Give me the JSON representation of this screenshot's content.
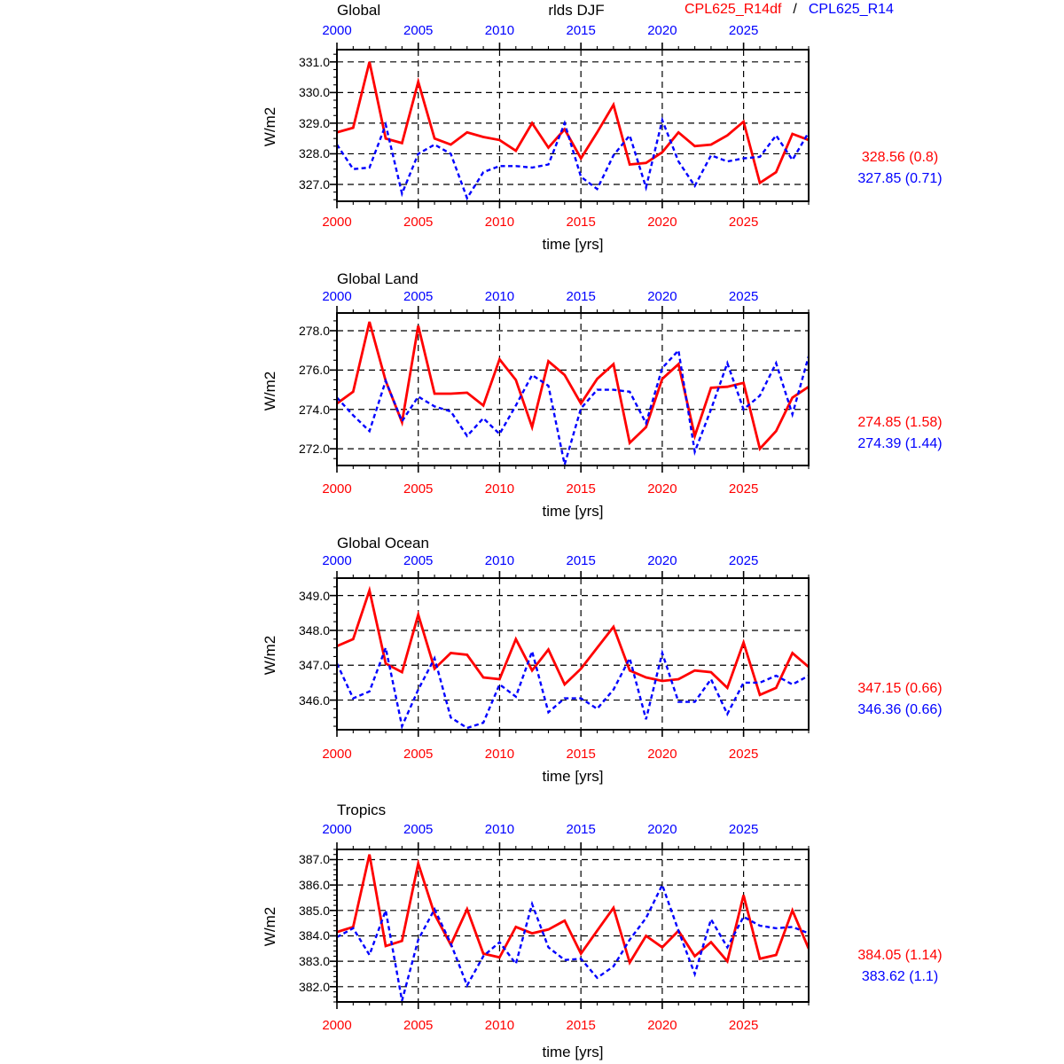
{
  "header": {
    "center_label": "rlds DJF",
    "legend": {
      "series1_label": "CPL625_R14df",
      "separator": "/",
      "series2_label": "CPL625_R14"
    }
  },
  "axis": {
    "xlabel": "time [yrs]",
    "ylabel": "W/m2",
    "x_tick_labels": [
      "2000",
      "2005",
      "2010",
      "2015",
      "2020",
      "2025"
    ],
    "top_tick_label_color": "#0000ff",
    "bottom_tick_label_color": "#ff0000"
  },
  "colors": {
    "series1": "#ff0000",
    "series2": "#0000ff",
    "grid": "#000000",
    "frame": "#000000"
  },
  "years": [
    2000,
    2001,
    2002,
    2003,
    2004,
    2005,
    2006,
    2007,
    2008,
    2009,
    2010,
    2011,
    2012,
    2013,
    2014,
    2015,
    2016,
    2017,
    2018,
    2019,
    2020,
    2021,
    2022,
    2023,
    2024,
    2025,
    2026,
    2027,
    2028,
    2029
  ],
  "chart_data": [
    {
      "type": "line",
      "title": "Global",
      "xlabel": "time [yrs]",
      "ylabel": "W/m2",
      "xlim": [
        2000,
        2029
      ],
      "x_ticks": [
        2000,
        2005,
        2010,
        2015,
        2020,
        2025
      ],
      "yticks": [
        327,
        328,
        329,
        330,
        331
      ],
      "ytick_labels": [
        "327.0",
        "328.0",
        "329.0",
        "330.0",
        "331.0"
      ],
      "ylim": [
        326.45,
        331.4
      ],
      "grid": true,
      "series": [
        {
          "name": "CPL625_R14df",
          "color": "#ff0000",
          "line_style": "solid",
          "values": [
            328.7,
            328.85,
            331.0,
            328.5,
            328.35,
            330.35,
            328.5,
            328.3,
            328.7,
            328.55,
            328.45,
            328.1,
            329.0,
            328.2,
            328.8,
            327.85,
            328.7,
            329.6,
            327.65,
            327.7,
            328.05,
            328.7,
            328.25,
            328.3,
            328.6,
            329.05,
            327.05,
            327.4,
            328.65,
            328.45
          ]
        },
        {
          "name": "CPL625_R14",
          "color": "#0000ff",
          "line_style": "dashed",
          "values": [
            328.3,
            327.5,
            327.55,
            328.95,
            326.7,
            328.0,
            328.3,
            328.0,
            326.55,
            327.4,
            327.6,
            327.6,
            327.55,
            327.65,
            329.0,
            327.25,
            326.85,
            327.95,
            328.6,
            326.9,
            329.1,
            327.75,
            326.95,
            327.95,
            327.75,
            327.85,
            327.9,
            328.6,
            327.8,
            328.7
          ]
        }
      ],
      "stats": {
        "series1": "328.56 (0.8)",
        "series2": "327.85 (0.71)"
      }
    },
    {
      "type": "line",
      "title": "Global Land",
      "xlabel": "time [yrs]",
      "ylabel": "W/m2",
      "xlim": [
        2000,
        2029
      ],
      "x_ticks": [
        2000,
        2005,
        2010,
        2015,
        2020,
        2025
      ],
      "yticks": [
        272,
        274,
        276,
        278
      ],
      "ytick_labels": [
        "272.0",
        "274.0",
        "276.0",
        "278.0"
      ],
      "ylim": [
        271.15,
        278.9
      ],
      "grid": true,
      "series": [
        {
          "name": "CPL625_R14df",
          "color": "#ff0000",
          "line_style": "solid",
          "values": [
            274.3,
            274.9,
            278.45,
            275.45,
            273.35,
            278.25,
            274.8,
            274.8,
            274.85,
            274.2,
            276.55,
            275.5,
            273.1,
            276.45,
            275.75,
            274.3,
            275.55,
            276.3,
            272.3,
            273.1,
            275.55,
            276.3,
            272.65,
            275.1,
            275.15,
            275.35,
            272.0,
            272.9,
            274.6,
            275.15
          ]
        },
        {
          "name": "CPL625_R14",
          "color": "#0000ff",
          "line_style": "dashed",
          "values": [
            274.6,
            273.7,
            272.9,
            275.45,
            273.4,
            274.65,
            274.15,
            273.9,
            272.65,
            273.55,
            272.75,
            274.2,
            275.75,
            275.2,
            271.2,
            274.05,
            275.0,
            275.0,
            274.9,
            273.3,
            276.1,
            277.0,
            271.85,
            274.0,
            276.35,
            274.0,
            274.7,
            276.35,
            273.75,
            276.7
          ]
        }
      ],
      "stats": {
        "series1": "274.85 (1.58)",
        "series2": "274.39 (1.44)"
      }
    },
    {
      "type": "line",
      "title": "Global Ocean",
      "xlabel": "time [yrs]",
      "ylabel": "W/m2",
      "xlim": [
        2000,
        2029
      ],
      "x_ticks": [
        2000,
        2005,
        2010,
        2015,
        2020,
        2025
      ],
      "yticks": [
        346,
        347,
        348,
        349
      ],
      "ytick_labels": [
        "346.0",
        "347.0",
        "348.0",
        "349.0"
      ],
      "ylim": [
        345.15,
        349.5
      ],
      "grid": true,
      "series": [
        {
          "name": "CPL625_R14df",
          "color": "#ff0000",
          "line_style": "solid",
          "values": [
            347.55,
            347.75,
            349.15,
            347.05,
            346.8,
            348.45,
            346.9,
            347.35,
            347.3,
            346.65,
            346.6,
            347.75,
            346.85,
            347.45,
            346.45,
            346.9,
            347.5,
            348.1,
            346.85,
            346.65,
            346.55,
            346.6,
            346.85,
            346.8,
            346.35,
            347.65,
            346.15,
            346.35,
            347.35,
            346.95
          ]
        },
        {
          "name": "CPL625_R14",
          "color": "#0000ff",
          "line_style": "dashed",
          "values": [
            347.05,
            346.05,
            346.25,
            347.5,
            345.25,
            346.3,
            347.2,
            345.5,
            345.2,
            345.35,
            346.45,
            346.1,
            347.4,
            345.65,
            346.05,
            346.05,
            345.75,
            346.3,
            347.2,
            345.45,
            347.35,
            345.95,
            345.95,
            346.6,
            345.6,
            346.5,
            346.5,
            346.7,
            346.45,
            346.7
          ]
        }
      ],
      "stats": {
        "series1": "347.15 (0.66)",
        "series2": "346.36 (0.66)"
      }
    },
    {
      "type": "line",
      "title": "Tropics",
      "xlabel": "time [yrs]",
      "ylabel": "W/m2",
      "xlim": [
        2000,
        2029
      ],
      "x_ticks": [
        2000,
        2005,
        2010,
        2015,
        2020,
        2025
      ],
      "yticks": [
        382,
        383,
        384,
        385,
        386,
        387
      ],
      "ytick_labels": [
        "382.0",
        "383.0",
        "384.0",
        "385.0",
        "386.0",
        "387.0"
      ],
      "ylim": [
        381.4,
        387.4
      ],
      "grid": true,
      "series": [
        {
          "name": "CPL625_R14df",
          "color": "#ff0000",
          "line_style": "solid",
          "values": [
            384.15,
            384.35,
            387.2,
            383.6,
            383.8,
            386.85,
            384.85,
            383.65,
            385.05,
            383.3,
            383.15,
            384.35,
            384.1,
            384.25,
            384.6,
            383.3,
            384.2,
            385.1,
            382.95,
            384.0,
            383.55,
            384.2,
            383.2,
            383.75,
            383.0,
            385.6,
            383.1,
            383.25,
            385.0,
            383.5
          ]
        },
        {
          "name": "CPL625_R14",
          "color": "#0000ff",
          "line_style": "dashed",
          "values": [
            383.95,
            384.3,
            383.25,
            385.0,
            381.45,
            383.85,
            385.05,
            383.7,
            382.05,
            383.2,
            383.75,
            382.9,
            385.25,
            383.55,
            383.05,
            383.1,
            382.35,
            382.8,
            383.85,
            384.7,
            386.0,
            384.2,
            382.5,
            384.65,
            383.55,
            384.75,
            384.4,
            384.3,
            384.35,
            384.1
          ]
        }
      ],
      "stats": {
        "series1": "384.05 (1.14)",
        "series2": "383.62 (1.1)"
      }
    }
  ]
}
